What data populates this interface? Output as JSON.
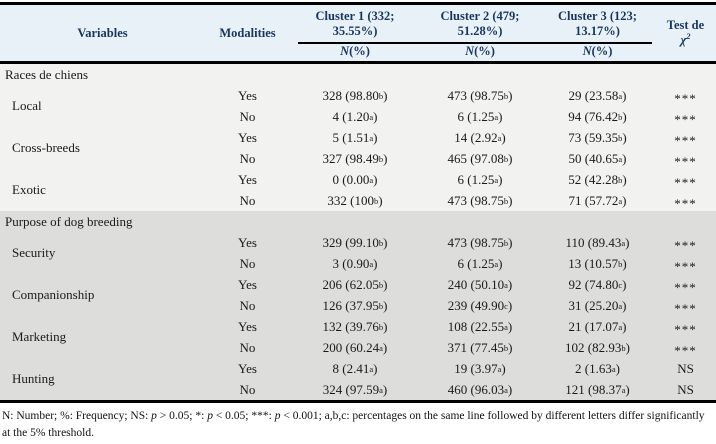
{
  "table": {
    "header": {
      "variables_label": "Variables",
      "modalities_label": "Modalities",
      "clusters": [
        {
          "title_lines": [
            "Cluster 1 (332;",
            "35.55%)"
          ],
          "sub": "N (%)"
        },
        {
          "title_lines": [
            "Cluster 2 (479;",
            "51.28%)"
          ],
          "sub": "N (%)"
        },
        {
          "title_lines": [
            "Cluster 3 (123;",
            "13.17%)"
          ],
          "sub": "N (%)"
        }
      ],
      "test_line1": "Test de",
      "test_line2": "χ^2"
    },
    "sections": [
      {
        "name": "Races de chiens",
        "variables": [
          {
            "name": "Local",
            "rows": [
              {
                "modality": "Yes",
                "cells": [
                  "328 (98.80^b)",
                  "473 (98.75^b)",
                  "29 (23.58^a)"
                ],
                "test": "***"
              },
              {
                "modality": "No",
                "cells": [
                  "4 (1.20^a)",
                  "6 (1.25^a)",
                  "94 (76.42^b)"
                ],
                "test": "***"
              }
            ]
          },
          {
            "name": "Cross-breeds",
            "rows": [
              {
                "modality": "Yes",
                "cells": [
                  "5 (1.51^a)",
                  "14 (2.92^a)",
                  "73 (59.35^b)"
                ],
                "test": "***"
              },
              {
                "modality": "No",
                "cells": [
                  "327 (98.49^b)",
                  "465 (97.08^b)",
                  "50 (40.65^a)"
                ],
                "test": "***"
              }
            ]
          },
          {
            "name": "Exotic",
            "rows": [
              {
                "modality": "Yes",
                "cells": [
                  "0 (0.00^a)",
                  "6 (1.25^a)",
                  "52 (42.28^b)"
                ],
                "test": "***"
              },
              {
                "modality": "No",
                "cells": [
                  "332 (100^b)",
                  "473 (98.75^b)",
                  "71 (57.72^a)"
                ],
                "test": "***"
              }
            ]
          }
        ]
      },
      {
        "name": "Purpose of dog breeding",
        "variables": [
          {
            "name": "Security",
            "rows": [
              {
                "modality": "Yes",
                "cells": [
                  "329 (99.10^b)",
                  "473 (98.75^b)",
                  "110 (89.43^a)"
                ],
                "test": "***"
              },
              {
                "modality": "No",
                "cells": [
                  "3 (0.90^a)",
                  "6 (1.25^a)",
                  "13 (10.57^b)"
                ],
                "test": "***"
              }
            ]
          },
          {
            "name": "Companionship",
            "rows": [
              {
                "modality": "Yes",
                "cells": [
                  "206 (62.05^b)",
                  "240 (50.10^a)",
                  "92 (74.80^c)"
                ],
                "test": "***"
              },
              {
                "modality": "No",
                "cells": [
                  "126 (37.95^b)",
                  "239 (49.90^c)",
                  "31 (25.20^a)"
                ],
                "test": "***"
              }
            ]
          },
          {
            "name": "Marketing",
            "rows": [
              {
                "modality": "Yes",
                "cells": [
                  "132 (39.76^b)",
                  "108 (22.55^a)",
                  "21 (17.07^a)"
                ],
                "test": "***"
              },
              {
                "modality": "No",
                "cells": [
                  "200 (60.24^a)",
                  "371 (77.45^b)",
                  "102 (82.93^b)"
                ],
                "test": "***"
              }
            ]
          },
          {
            "name": "Hunting",
            "rows": [
              {
                "modality": "Yes",
                "cells": [
                  "8 (2.41^a)",
                  "19 (3.97^a)",
                  "2 (1.63^a)"
                ],
                "test": "NS"
              },
              {
                "modality": "No",
                "cells": [
                  "324 (97.59^a)",
                  "460 (96.03^a)",
                  "121 (98.37^a)"
                ],
                "test": "NS"
              }
            ]
          }
        ]
      }
    ],
    "footnote_segments": [
      {
        "text": "N: Number; %: Frequency; NS: "
      },
      {
        "text": "p",
        "italic": true
      },
      {
        "text": " > 0.05; *: "
      },
      {
        "text": "p",
        "italic": true
      },
      {
        "text": " < 0.05; ***: "
      },
      {
        "text": "p",
        "italic": true
      },
      {
        "text": " < 0.001; a,b,c: percentages on the same line followed by different letters differ significantly at the 5% threshold."
      }
    ],
    "colors": {
      "header_bg": "#E9F1F8",
      "header_text": "#17365D",
      "section1_bg": "#F2F2F0",
      "section2_bg": "#DDDDDB",
      "border": "#000000",
      "body_text": "#1A1A1A"
    }
  }
}
